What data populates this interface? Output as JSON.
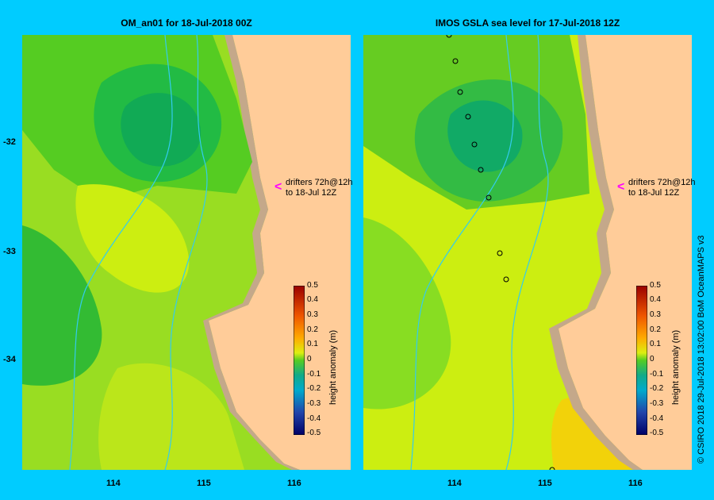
{
  "left_panel": {
    "title": "OM_an01  for 18-Jul-2018 00Z",
    "annotation_line1": "drifters 72h@12h",
    "annotation_line2": "to 18-Jul 12Z",
    "arrow": "<"
  },
  "right_panel": {
    "title": "IMOS  GSLA sea level   for 17-Jul-2018 12Z",
    "annotation_line1": "drifters 72h@12h",
    "annotation_line2": "to 18-Jul 12Z",
    "arrow": "<"
  },
  "axes": {
    "x_ticks": [
      "114",
      "115",
      "116"
    ],
    "y_ticks": [
      "-32",
      "-33",
      "-34"
    ]
  },
  "colorbar": {
    "title": "height anomaly (m)",
    "ticks": [
      "0.5",
      "0.4",
      "0.3",
      "0.2",
      "0.1",
      "0",
      "-0.1",
      "-0.2",
      "-0.3",
      "-0.4",
      "-0.5"
    ]
  },
  "credit": "© CSIRO 2018    29-Jul-2018 13:02:00 BoM OceanMAPS v3",
  "colors": {
    "background": "#00ccff",
    "land": "#ffcc99",
    "shelf": "#c4a88a",
    "drifter_arrow": "#ff00ff",
    "isobath": "#33ccee"
  }
}
